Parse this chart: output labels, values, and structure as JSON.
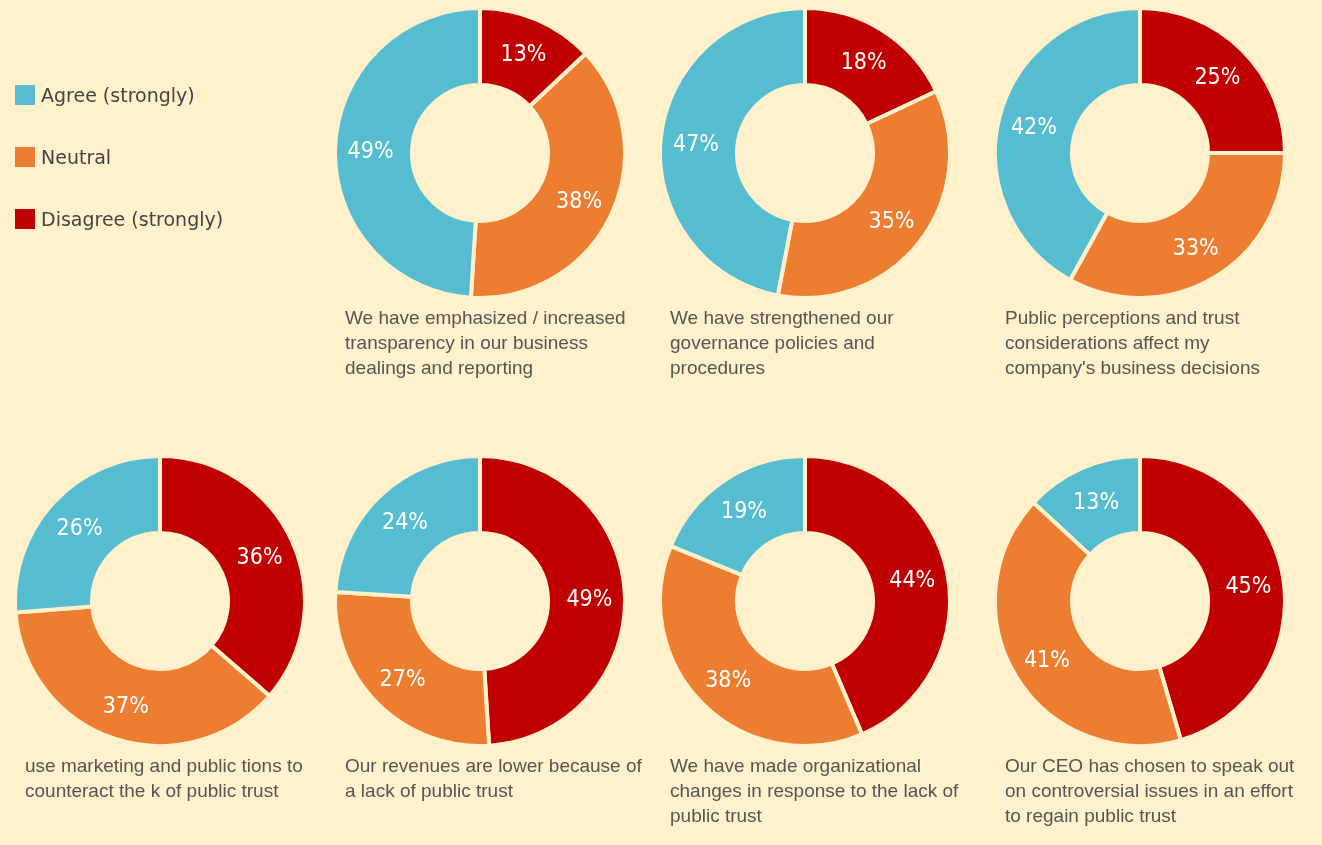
{
  "chart_data": [
    {
      "type": "donut",
      "title": "We have emphasized / increased transparency in our business dealings and reporting",
      "categories": [
        "Disagree (strongly)",
        "Neutral",
        "Agree (strongly)"
      ],
      "values": [
        13,
        38,
        49
      ],
      "value_labels": [
        "13%",
        "38%",
        "49%"
      ],
      "colors": [
        "#c00000",
        "#ed7d31",
        "#56bdd0"
      ],
      "legend": "left"
    },
    {
      "type": "donut",
      "title": "We have strengthened our governance policies and procedures",
      "categories": [
        null,
        null,
        null
      ],
      "values": [
        18,
        35,
        47
      ],
      "value_labels": [
        "18%",
        "35%",
        "47%"
      ],
      "colors": [
        "#c00000",
        "#ed7d31",
        "#56bdd0"
      ]
    },
    {
      "type": "donut",
      "title": "Public perceptions and trust considerations affect my company's business decisions",
      "categories": [
        null,
        null,
        null
      ],
      "values": [
        25,
        33,
        42
      ],
      "value_labels": [
        "25%",
        "33%",
        "42%"
      ],
      "colors": [
        "#c00000",
        "#ed7d31",
        "#56bdd0"
      ]
    },
    {
      "type": "donut",
      "title": "use marketing and public tions to counteract the k of public trust",
      "categories": [
        null,
        null,
        null
      ],
      "values": [
        36,
        37,
        26
      ],
      "value_labels": [
        "36%",
        "37%",
        "26%"
      ],
      "colors": [
        "#c00000",
        "#ed7d31",
        "#56bdd0"
      ]
    },
    {
      "type": "donut",
      "title": "Our revenues are lower because of a lack of public trust",
      "categories": [
        null,
        null,
        null
      ],
      "values": [
        49,
        27,
        24
      ],
      "value_labels": [
        "49%",
        "27%",
        "24%"
      ],
      "colors": [
        "#c00000",
        "#ed7d31",
        "#56bdd0"
      ]
    },
    {
      "type": "donut",
      "title": "We have made organizational changes in response to the lack of public trust",
      "categories": [
        null,
        null,
        null
      ],
      "values": [
        44,
        38,
        19
      ],
      "value_labels": [
        "44%",
        "38%",
        "19%"
      ],
      "colors": [
        "#c00000",
        "#ed7d31",
        "#56bdd0"
      ]
    },
    {
      "type": "donut",
      "title": "Our CEO has chosen to speak out on controversial issues in an effort to regain public trust",
      "categories": [
        null,
        null,
        null
      ],
      "values": [
        45,
        41,
        13
      ],
      "value_labels": [
        "45%",
        "41%",
        "13%"
      ],
      "colors": [
        "#c00000",
        "#ed7d31",
        "#56bdd0"
      ]
    }
  ]
}
